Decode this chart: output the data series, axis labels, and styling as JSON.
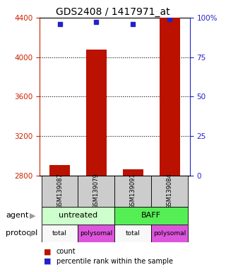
{
  "title": "GDS2408 / 1417971_at",
  "samples": [
    "GSM139087",
    "GSM139079",
    "GSM139091",
    "GSM139084"
  ],
  "counts": [
    2905,
    4080,
    2865,
    4400
  ],
  "percentiles": [
    96,
    97.5,
    96,
    99
  ],
  "ylim_left": [
    2800,
    4400
  ],
  "ylim_right": [
    0,
    100
  ],
  "yticks_left": [
    2800,
    3200,
    3600,
    4000,
    4400
  ],
  "yticks_right": [
    0,
    25,
    50,
    75,
    100
  ],
  "ytick_labels_right": [
    "0",
    "25",
    "50",
    "75",
    "100%"
  ],
  "bar_color": "#bb1100",
  "dot_color": "#2222cc",
  "agent_labels": [
    "untreated",
    "BAFF"
  ],
  "agent_colors": [
    "#ccffcc",
    "#55ee55"
  ],
  "protocol_labels": [
    "total",
    "polysomal",
    "total",
    "polysomal"
  ],
  "protocol_colors": [
    "#f8f8f8",
    "#dd55dd",
    "#f8f8f8",
    "#dd55dd"
  ],
  "sample_box_color": "#cccccc",
  "background_color": "#ffffff",
  "title_fontsize": 10,
  "axis_color_left": "#cc2200",
  "axis_color_right": "#2222cc",
  "gridline_color": "#000000",
  "spine_color": "#000000"
}
